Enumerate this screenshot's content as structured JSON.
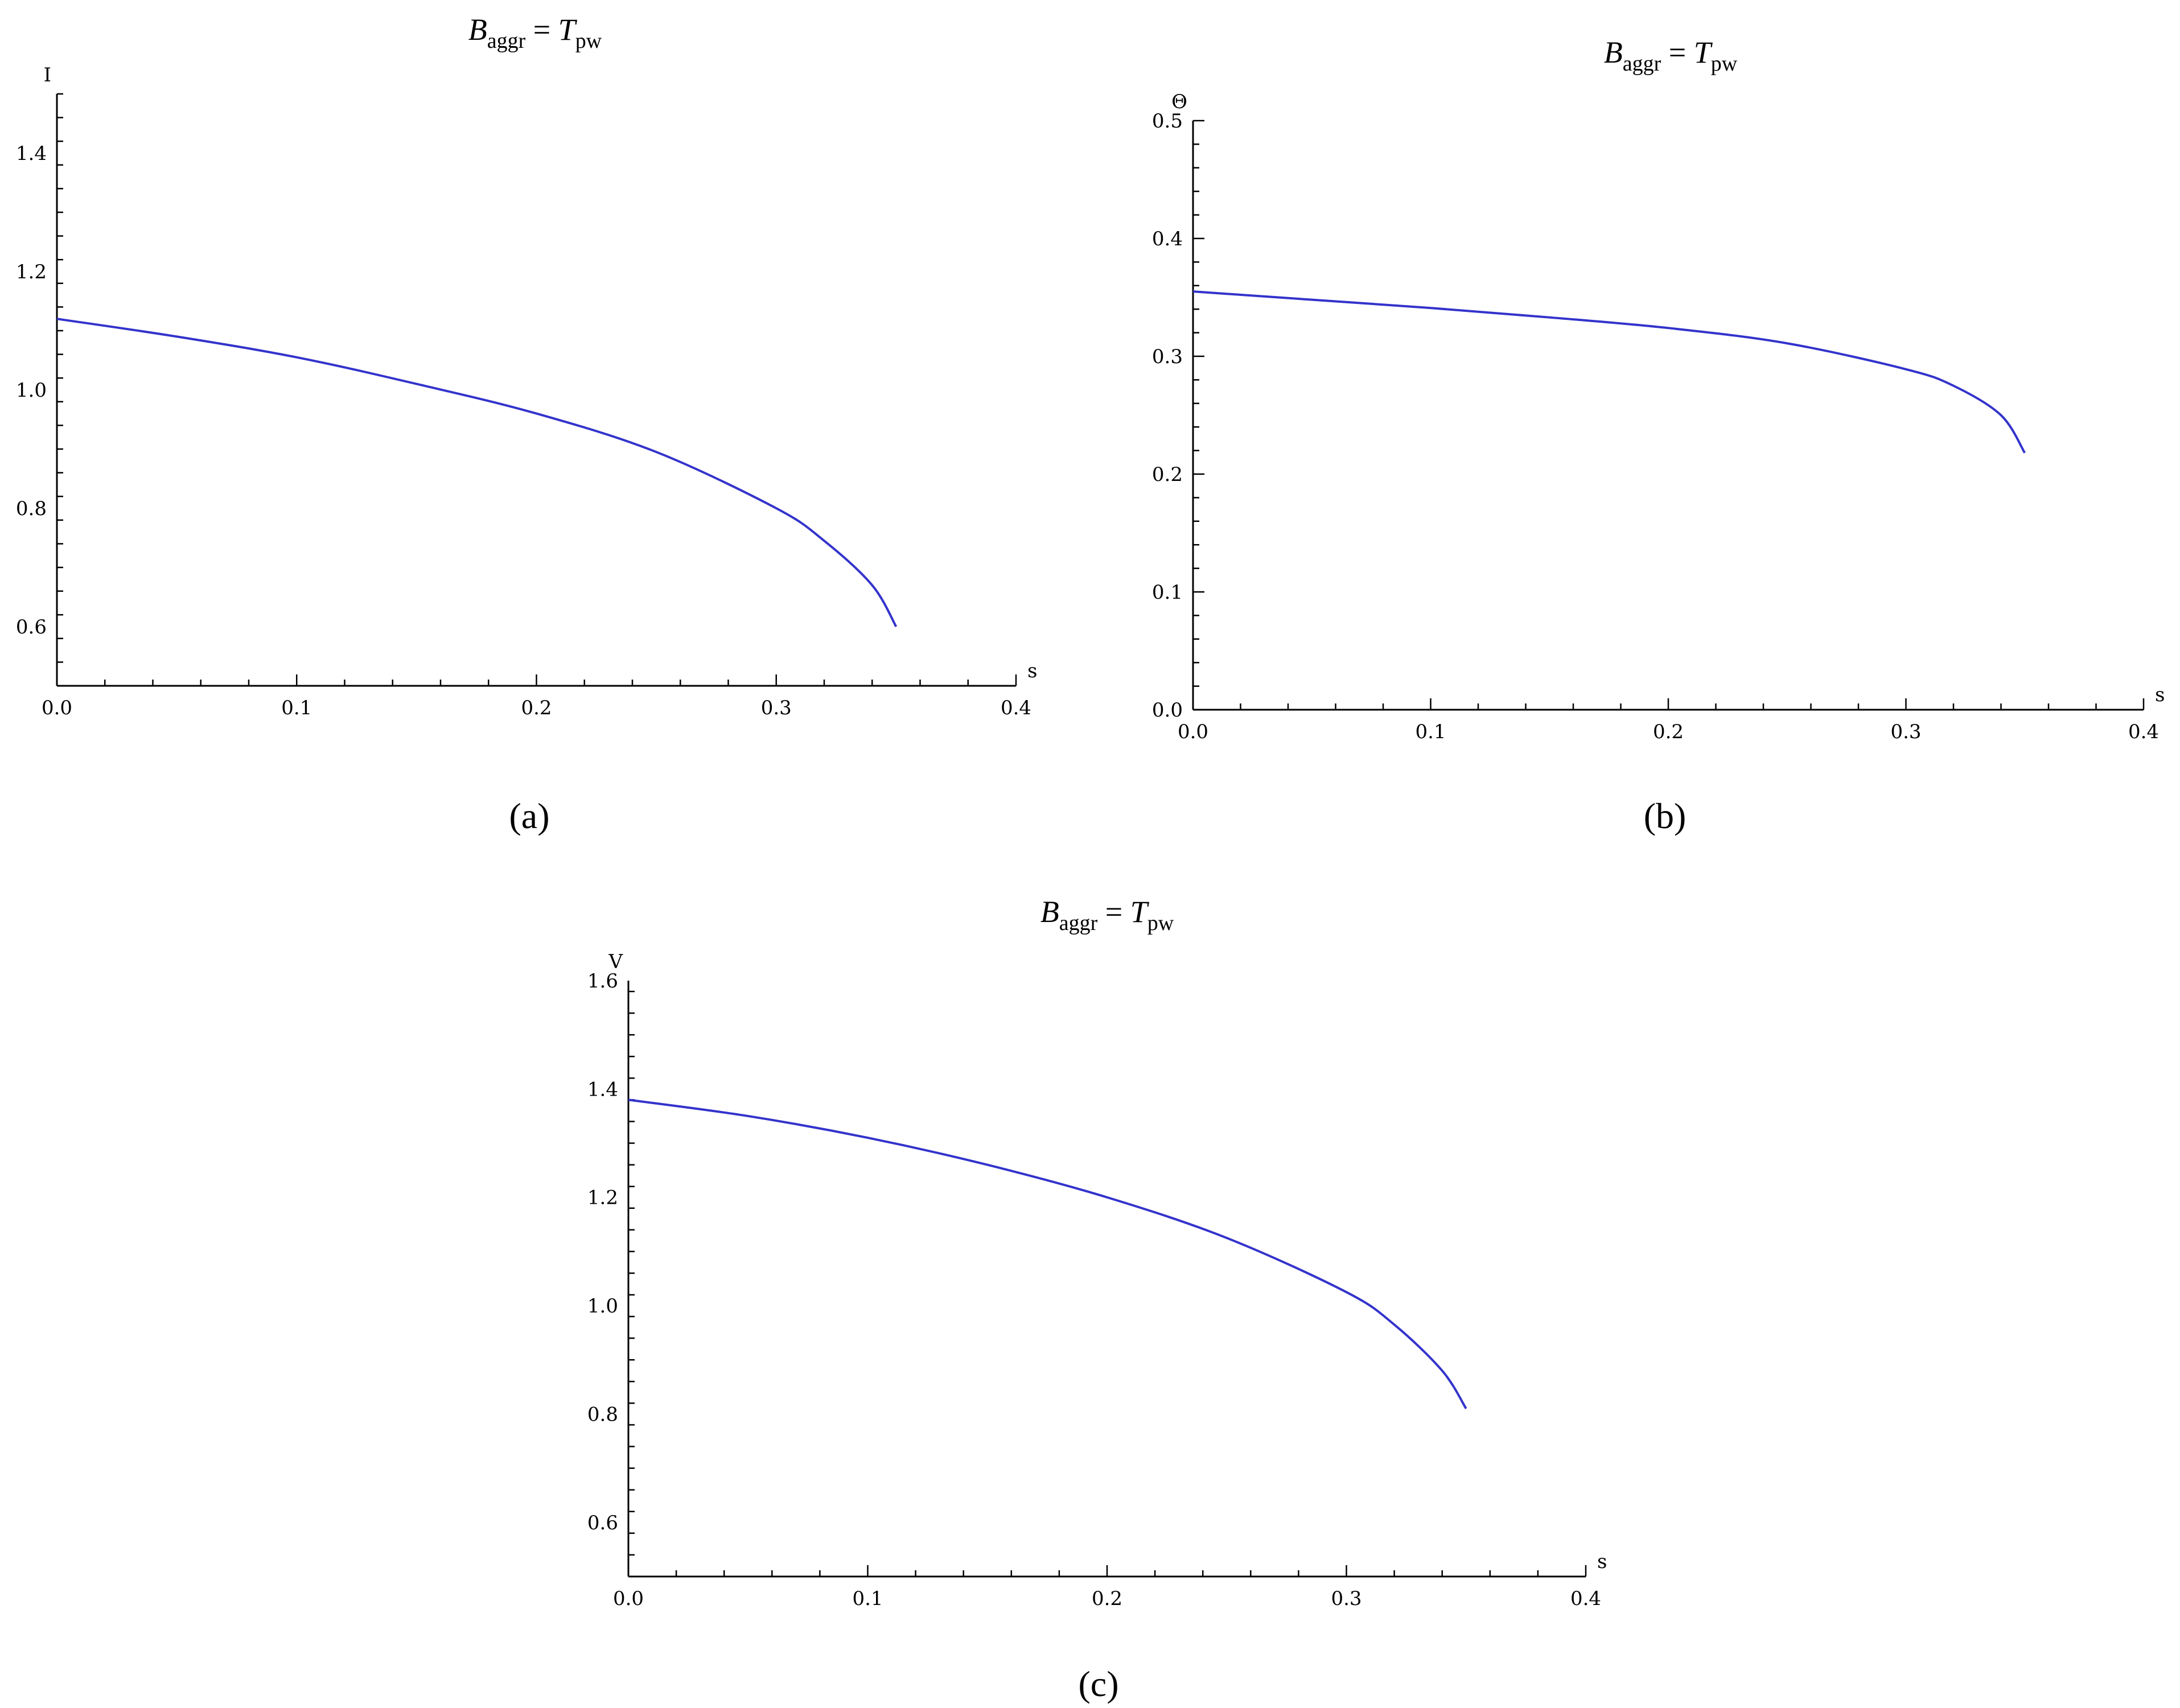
{
  "chart_data": [
    {
      "type": "line",
      "caption": "(a)",
      "title": {
        "base": "B",
        "base_sub": "aggr",
        "eq": "=",
        "rhs": "T",
        "rhs_sub": "pw"
      },
      "xlabel": "s",
      "ylabel": "I",
      "xlim": [
        0,
        0.4
      ],
      "ylim": [
        0.5,
        1.5
      ],
      "xticks": [
        0.0,
        0.1,
        0.2,
        0.3,
        0.4
      ],
      "xtick_labels": [
        "0.0",
        "0.1",
        "0.2",
        "0.3",
        "0.4"
      ],
      "yticks": [
        0.6,
        0.8,
        1.0,
        1.2,
        1.4
      ],
      "ytick_labels": [
        "0.6",
        "0.8",
        "1.0",
        "1.2",
        "1.4"
      ],
      "series": [
        {
          "color": "#3333cc",
          "x": [
            0,
            0.05,
            0.1,
            0.15,
            0.2,
            0.25,
            0.3,
            0.32,
            0.34,
            0.35
          ],
          "y": [
            1.12,
            1.09,
            1.055,
            1.01,
            0.96,
            0.895,
            0.8,
            0.745,
            0.67,
            0.6
          ]
        }
      ]
    },
    {
      "type": "line",
      "caption": "(b)",
      "title": {
        "base": "B",
        "base_sub": "aggr",
        "eq": "=",
        "rhs": "T",
        "rhs_sub": "pw"
      },
      "xlabel": "s",
      "ylabel": "Θ",
      "xlim": [
        0,
        0.4
      ],
      "ylim": [
        0,
        0.5
      ],
      "xticks": [
        0.0,
        0.1,
        0.2,
        0.3,
        0.4
      ],
      "xtick_labels": [
        "0.0",
        "0.1",
        "0.2",
        "0.3",
        "0.4"
      ],
      "yticks": [
        0.0,
        0.1,
        0.2,
        0.3,
        0.4,
        0.5
      ],
      "ytick_labels": [
        "0.0",
        "0.1",
        "0.2",
        "0.3",
        "0.4",
        "0.5"
      ],
      "series": [
        {
          "color": "#3333cc",
          "x": [
            0,
            0.05,
            0.1,
            0.15,
            0.2,
            0.25,
            0.3,
            0.32,
            0.34,
            0.35
          ],
          "y": [
            0.355,
            0.348,
            0.341,
            0.333,
            0.324,
            0.311,
            0.289,
            0.275,
            0.25,
            0.218
          ]
        }
      ]
    },
    {
      "type": "line",
      "caption": "(c)",
      "title": {
        "base": "B",
        "base_sub": "aggr",
        "eq": "=",
        "rhs": "T",
        "rhs_sub": "pw"
      },
      "xlabel": "s",
      "ylabel": "V",
      "xlim": [
        0,
        0.4
      ],
      "ylim": [
        0.5,
        1.6
      ],
      "xticks": [
        0.0,
        0.1,
        0.2,
        0.3,
        0.4
      ],
      "xtick_labels": [
        "0.0",
        "0.1",
        "0.2",
        "0.3",
        "0.4"
      ],
      "yticks": [
        0.6,
        0.8,
        1.0,
        1.2,
        1.4,
        1.6
      ],
      "ytick_labels": [
        "0.6",
        "0.8",
        "1.0",
        "1.2",
        "1.4",
        "1.6"
      ],
      "series": [
        {
          "color": "#3333cc",
          "x": [
            0,
            0.05,
            0.1,
            0.15,
            0.2,
            0.25,
            0.3,
            0.32,
            0.34,
            0.35
          ],
          "y": [
            1.38,
            1.35,
            1.31,
            1.26,
            1.2,
            1.125,
            1.025,
            0.965,
            0.88,
            0.81
          ]
        }
      ]
    }
  ]
}
